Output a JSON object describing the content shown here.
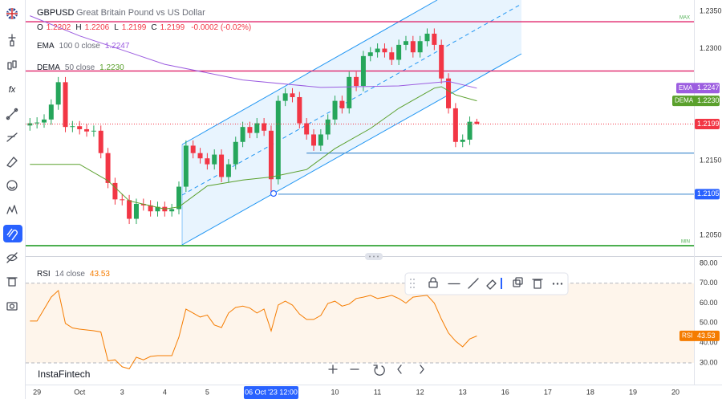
{
  "header": {
    "symbol": "GBPUSD",
    "description": "Great Britain Pound vs US Dollar",
    "ohlc": [
      {
        "key": "O",
        "value": "1.2202"
      },
      {
        "key": "H",
        "value": "1.2206"
      },
      {
        "key": "L",
        "value": "1.2199"
      },
      {
        "key": "C",
        "value": "1.2199"
      }
    ],
    "change": "-0.0002 (-0.02%)",
    "brand": "InstaFintech"
  },
  "chart_data": [
    {
      "type": "candlestick",
      "up_color": "#26a65b",
      "down_color": "#f23645",
      "open": [
        1.2197,
        1.22,
        1.2201,
        1.2205,
        1.2225,
        1.2255,
        1.2195,
        1.2196,
        1.2192,
        1.2189,
        1.219,
        1.216,
        1.212,
        1.2098,
        1.2097,
        1.2072,
        1.2092,
        1.209,
        1.2082,
        1.2088,
        1.2082,
        1.2085,
        1.2115,
        1.217,
        1.216,
        1.2153,
        1.2145,
        1.2158,
        1.2128,
        1.2145,
        1.2175,
        1.2195,
        1.2187,
        1.22,
        1.219,
        1.2125,
        1.223,
        1.224,
        1.2235,
        1.22,
        1.2185,
        1.217,
        1.2185,
        1.2205,
        1.223,
        1.222,
        1.2262,
        1.225,
        1.229,
        1.2295,
        1.23,
        1.2295,
        1.2285,
        1.2305,
        1.231,
        1.2295,
        1.231,
        1.232,
        1.2305,
        1.226,
        1.222,
        1.2175,
        1.2178,
        1.2202
      ],
      "high": [
        1.2207,
        1.2208,
        1.2212,
        1.2232,
        1.2262,
        1.2262,
        1.2203,
        1.2203,
        1.2199,
        1.2197,
        1.2197,
        1.2167,
        1.2127,
        1.2105,
        1.2104,
        1.2099,
        1.2099,
        1.2097,
        1.2095,
        1.2095,
        1.2092,
        1.2122,
        1.2177,
        1.2177,
        1.2167,
        1.216,
        1.2165,
        1.2165,
        1.2152,
        1.2182,
        1.2202,
        1.2202,
        1.2207,
        1.2207,
        1.2197,
        1.2237,
        1.2247,
        1.2247,
        1.2242,
        1.2207,
        1.2192,
        1.2192,
        1.2212,
        1.2237,
        1.2237,
        1.2269,
        1.2269,
        1.2297,
        1.2302,
        1.2307,
        1.2307,
        1.2302,
        1.2312,
        1.2317,
        1.2317,
        1.2317,
        1.2327,
        1.2327,
        1.2312,
        1.2267,
        1.2227,
        1.2185,
        1.2209,
        1.2206
      ],
      "low": [
        1.219,
        1.2193,
        1.2194,
        1.2198,
        1.2218,
        1.2188,
        1.2188,
        1.2185,
        1.2182,
        1.2182,
        1.2153,
        1.2113,
        1.2091,
        1.209,
        1.2065,
        1.2065,
        1.2083,
        1.2075,
        1.2075,
        1.2075,
        1.2075,
        1.2078,
        1.2108,
        1.2153,
        1.2146,
        1.2138,
        1.2138,
        1.2121,
        1.2121,
        1.2138,
        1.2168,
        1.218,
        1.218,
        1.2183,
        1.2105,
        1.2118,
        1.2223,
        1.2228,
        1.2193,
        1.2178,
        1.2163,
        1.2163,
        1.2178,
        1.2198,
        1.2213,
        1.2213,
        1.2243,
        1.2243,
        1.2283,
        1.2288,
        1.2288,
        1.2278,
        1.2278,
        1.2298,
        1.2288,
        1.2288,
        1.2303,
        1.2298,
        1.2253,
        1.2213,
        1.2168,
        1.2168,
        1.2171,
        1.2199
      ],
      "close": [
        1.22,
        1.2201,
        1.2205,
        1.2225,
        1.2255,
        1.2195,
        1.2196,
        1.2192,
        1.2189,
        1.219,
        1.216,
        1.212,
        1.2098,
        1.2097,
        1.2072,
        1.2092,
        1.209,
        1.2082,
        1.2088,
        1.2082,
        1.2085,
        1.2115,
        1.217,
        1.216,
        1.2153,
        1.2145,
        1.2158,
        1.2128,
        1.2145,
        1.2175,
        1.2195,
        1.2187,
        1.22,
        1.219,
        1.2125,
        1.223,
        1.224,
        1.2235,
        1.22,
        1.2185,
        1.217,
        1.2185,
        1.2205,
        1.223,
        1.222,
        1.2262,
        1.225,
        1.229,
        1.2295,
        1.23,
        1.2295,
        1.2285,
        1.2305,
        1.231,
        1.2295,
        1.231,
        1.232,
        1.2305,
        1.226,
        1.222,
        1.2175,
        1.2178,
        1.2202,
        1.2199
      ],
      "xlim": [
        -0.6,
        93.6
      ],
      "xticks": [
        {
          "value": 1,
          "label": "29"
        },
        {
          "value": 7,
          "label": "Oct"
        },
        {
          "value": 13,
          "label": "3"
        },
        {
          "value": 19,
          "label": "4"
        },
        {
          "value": 25,
          "label": "5"
        },
        {
          "value": 43,
          "label": "10"
        },
        {
          "value": 49,
          "label": "11"
        },
        {
          "value": 55,
          "label": "12"
        },
        {
          "value": 61,
          "label": "13"
        },
        {
          "value": 67,
          "label": "16"
        },
        {
          "value": 73,
          "label": "17"
        },
        {
          "value": 79,
          "label": "18"
        },
        {
          "value": 85,
          "label": "19"
        },
        {
          "value": 91,
          "label": "20"
        }
      ],
      "crosshair": {
        "value": 34,
        "label": "06 Oct '23 12:00"
      },
      "ylim": [
        1.20231,
        1.23651
      ],
      "yticks": [
        {
          "value": 1.235,
          "label": "1.2350"
        },
        {
          "value": 1.23,
          "label": "1.2300"
        },
        {
          "value": 1.215,
          "label": "1.2150"
        },
        {
          "value": 1.205,
          "label": "1.2050"
        }
      ],
      "indicators": [
        {
          "name": "EMA",
          "params": "100 0 close",
          "value": 1.2247,
          "color": "#9c5de0",
          "x": [
            0,
            7,
            14,
            19,
            30,
            41,
            52,
            59,
            63
          ],
          "values": [
            1.2344,
            1.2317,
            1.2295,
            1.2279,
            1.2258,
            1.2248,
            1.225,
            1.2256,
            1.2247
          ]
        },
        {
          "name": "DEMA",
          "params": "50 close",
          "value": 1.223,
          "value_label": "1.2230",
          "color": "#5aa02c",
          "x": [
            0,
            7,
            11,
            14,
            19,
            21,
            25,
            30,
            34,
            39,
            43,
            48,
            52,
            57,
            58,
            60,
            63
          ],
          "values": [
            1.2145,
            1.2145,
            1.2123,
            1.2096,
            1.2085,
            1.2088,
            1.2116,
            1.2124,
            1.2128,
            1.2138,
            1.2166,
            1.2193,
            1.222,
            1.2247,
            1.2249,
            1.2238,
            1.223
          ]
        }
      ],
      "hlines": [
        {
          "value": 1.2336,
          "color": "#e0246a"
        },
        {
          "value": 1.227,
          "color": "#e0246a"
        },
        {
          "value": 1.2036,
          "color": "#4caf50"
        },
        {
          "value": 1.216,
          "color": "#5b9bd5",
          "from": 39
        },
        {
          "value": 1.2105,
          "color": "#5b9bd5",
          "from": 35
        }
      ],
      "extremes": [
        {
          "label": "MAX",
          "value": 1.2336
        },
        {
          "label": "MIN",
          "value": 1.2036
        }
      ],
      "price_labels": [
        {
          "value": 1.2199,
          "label": "1.2199",
          "color": "#f23645",
          "dotted": true
        },
        {
          "value": 1.2105,
          "label": "1.2105",
          "color": "#2962ff"
        }
      ]
    },
    {
      "type": "line",
      "name": "RSI",
      "params": "14 close",
      "value": 43.53,
      "color": "#f57c00",
      "values": [
        51,
        51,
        57,
        63,
        66.3,
        49.8,
        47.5,
        46.9,
        46.5,
        46.1,
        45.5,
        31,
        31.5,
        28,
        27,
        32.8,
        31.5,
        33.2,
        33.6,
        33.6,
        33.6,
        42.9,
        57,
        55,
        53,
        54,
        49,
        47.7,
        55,
        57.8,
        58.5,
        57.5,
        55,
        57,
        46,
        59,
        61,
        59,
        54.5,
        51.8,
        51.8,
        53.8,
        59.8,
        61,
        58.5,
        59.5,
        62.3,
        63,
        63.9,
        62.3,
        63,
        63.9,
        62.3,
        60,
        63,
        63.5,
        63.9,
        60,
        52,
        45,
        40.9,
        38.1,
        42,
        43.5
      ],
      "band": [
        30,
        70
      ],
      "ylim": [
        20.7,
        82.4
      ],
      "yticks": [
        {
          "value": 80,
          "label": "80.00"
        },
        {
          "value": 70,
          "label": "70.00"
        },
        {
          "value": 60,
          "label": "60.00"
        },
        {
          "value": 50,
          "label": "50.00"
        },
        {
          "value": 40,
          "label": "40.00"
        },
        {
          "value": 30,
          "label": "30.00"
        }
      ]
    }
  ]
}
